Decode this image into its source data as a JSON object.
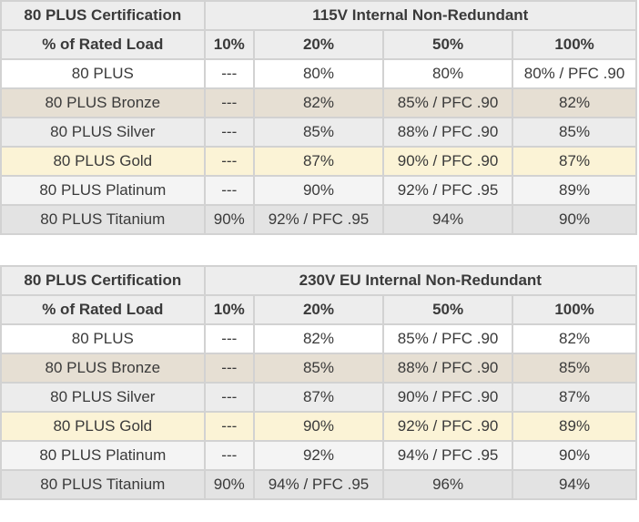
{
  "tables": [
    {
      "cert_label": "80 PLUS Certification",
      "title": "115V Internal Non-Redundant",
      "header": [
        "% of Rated Load",
        "10%",
        "20%",
        "50%",
        "100%"
      ],
      "rows": [
        {
          "bg": "#ffffff",
          "cells": [
            "80 PLUS",
            "---",
            "80%",
            "80%",
            "80% / PFC .90"
          ]
        },
        {
          "bg": "#e6dfd3",
          "cells": [
            "80 PLUS Bronze",
            "---",
            "82%",
            "85% / PFC .90",
            "82%"
          ]
        },
        {
          "bg": "#ececec",
          "cells": [
            "80 PLUS Silver",
            "---",
            "85%",
            "88% / PFC .90",
            "85%"
          ]
        },
        {
          "bg": "#fbf3d6",
          "cells": [
            "80 PLUS Gold",
            "---",
            "87%",
            "90% / PFC .90",
            "87%"
          ]
        },
        {
          "bg": "#f4f4f4",
          "cells": [
            "80 PLUS Platinum",
            "---",
            "90%",
            "92% / PFC .95",
            "89%"
          ]
        },
        {
          "bg": "#e3e3e3",
          "cells": [
            "80 PLUS Titanium",
            "90%",
            "92% / PFC .95",
            "94%",
            "90%"
          ]
        }
      ]
    },
    {
      "cert_label": "80 PLUS Certification",
      "title": "230V EU Internal Non-Redundant",
      "header": [
        "% of Rated Load",
        "10%",
        "20%",
        "50%",
        "100%"
      ],
      "rows": [
        {
          "bg": "#ffffff",
          "cells": [
            "80 PLUS",
            "---",
            "82%",
            "85% / PFC .90",
            "82%"
          ]
        },
        {
          "bg": "#e6dfd3",
          "cells": [
            "80 PLUS Bronze",
            "---",
            "85%",
            "88% / PFC .90",
            "85%"
          ]
        },
        {
          "bg": "#ececec",
          "cells": [
            "80 PLUS Silver",
            "---",
            "87%",
            "90% / PFC .90",
            "87%"
          ]
        },
        {
          "bg": "#fbf3d6",
          "cells": [
            "80 PLUS Gold",
            "---",
            "90%",
            "92% / PFC .90",
            "89%"
          ]
        },
        {
          "bg": "#f4f4f4",
          "cells": [
            "80 PLUS Platinum",
            "---",
            "92%",
            "94% / PFC .95",
            "90%"
          ]
        },
        {
          "bg": "#e3e3e3",
          "cells": [
            "80 PLUS Titanium",
            "90%",
            "94% / PFC .95",
            "96%",
            "94%"
          ]
        }
      ]
    }
  ]
}
